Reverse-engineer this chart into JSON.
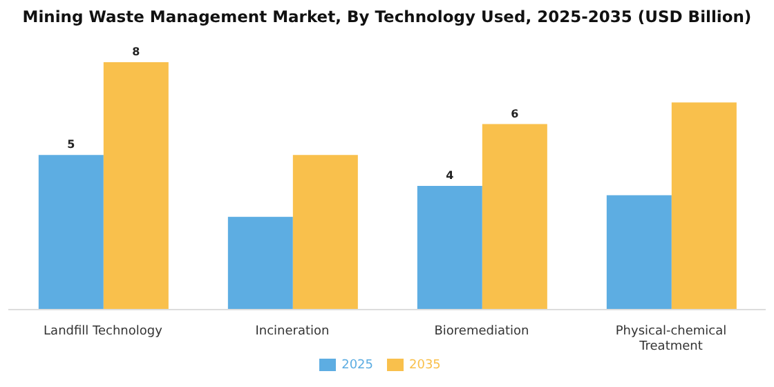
{
  "chart_data": {
    "type": "bar",
    "title": "Mining Waste Management Market, By Technology Used, 2025-2035 (USD Billion)",
    "categories": [
      "Landfill Technology",
      "Incineration",
      "Bioremediation",
      "Physical-chemical Treatment"
    ],
    "series": [
      {
        "name": "2025",
        "color": "#5dade2",
        "values": [
          5,
          3.0,
          4,
          3.7
        ],
        "value_labels": [
          "5",
          null,
          "4",
          null
        ]
      },
      {
        "name": "2035",
        "color": "#f9c04c",
        "values": [
          8,
          5.0,
          6,
          6.7
        ],
        "value_labels": [
          "8",
          null,
          "6",
          null
        ]
      }
    ],
    "legend": "bottom",
    "grid": false
  }
}
